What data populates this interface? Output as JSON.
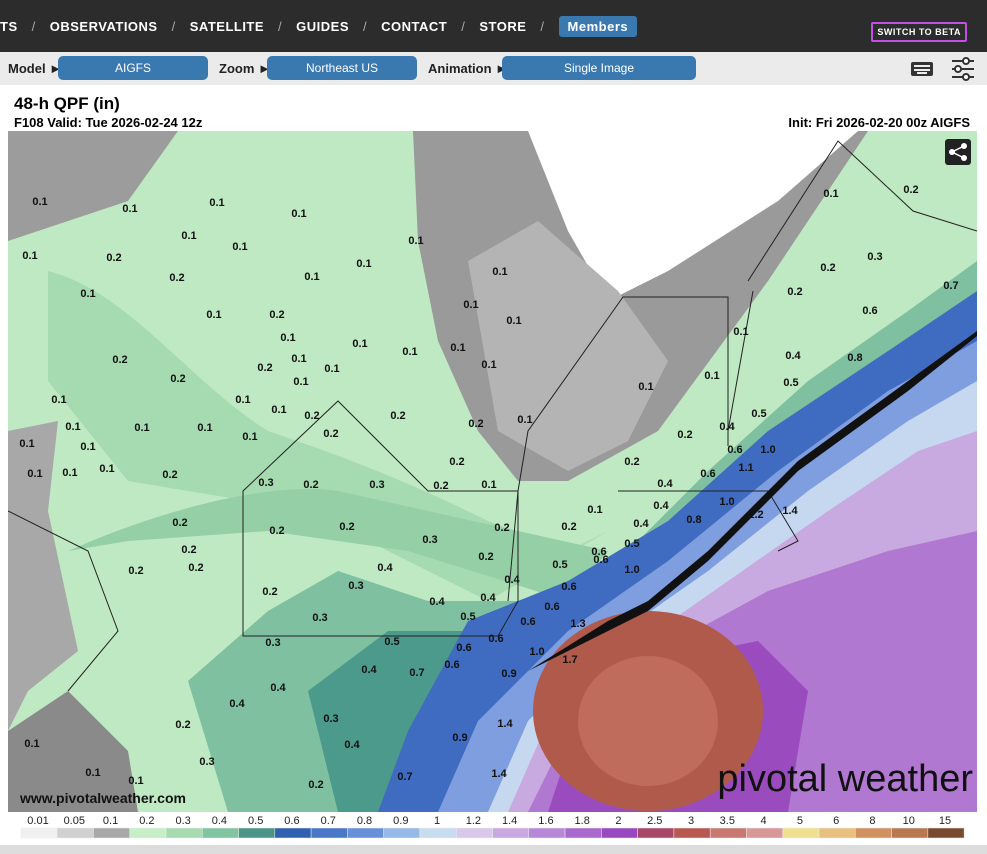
{
  "nav": {
    "items": [
      "TS",
      "OBSERVATIONS",
      "SATELLITE",
      "GUIDES",
      "CONTACT",
      "STORE"
    ],
    "separator": "/",
    "members": "Members",
    "beta": "SWITCH TO BETA"
  },
  "toolbar": {
    "model_label": "Model ►",
    "model": "AIGFS",
    "zoom_label": "Zoom ►",
    "zoom": "Northeast US",
    "animation_label": "Animation ►",
    "animation": "Single Image"
  },
  "header": {
    "title": "48-h QPF (in)",
    "valid": "F108 Valid: Tue 2026-02-24 12z",
    "init": "Init: Fri 2026-02-20 00z AIGFS"
  },
  "map": {
    "url": "www.pivotalweather.com",
    "brand": "pivotal weather",
    "labels": [
      "0.1",
      "0.1",
      "0.1",
      "0.1",
      "0.1",
      "0.1",
      "0.2",
      "0.1",
      "0.2",
      "0.1",
      "0.1",
      "0.1",
      "0.1",
      "0.1",
      "0.1",
      "0.2",
      "0.1",
      "0.1",
      "0.1",
      "0.2",
      "0.2",
      "0.1",
      "0.1",
      "0.1",
      "0.1",
      "0.1",
      "0.1",
      "0.1",
      "0.2",
      "0.1",
      "0.1",
      "0.1",
      "0.2",
      "0.1",
      "0.1",
      "0.1",
      "0.1",
      "0.2",
      "0.2",
      "0.2",
      "0.1",
      "0.1",
      "0.1",
      "0.1",
      "0.1",
      "0.1",
      "0.2",
      "0.3",
      "0.2",
      "0.3",
      "0.2",
      "0.1",
      "0.2",
      "0.2",
      "0.2",
      "0.2",
      "0.3",
      "0.2",
      "0.2",
      "0.1",
      "0.2",
      "0.2",
      "0.2",
      "0.2",
      "0.3",
      "0.4",
      "0.2",
      "0.4",
      "0.4",
      "0.5",
      "0.4",
      "0.5",
      "0.6",
      "0.6",
      "0.3",
      "0.3",
      "0.5",
      "0.6",
      "0.6",
      "0.6",
      "0.6",
      "1.0",
      "1.3",
      "1.7",
      "0.4",
      "0.4",
      "0.4",
      "0.7",
      "0.6",
      "0.9",
      "0.3",
      "0.2",
      "0.4",
      "0.3",
      "0.7",
      "0.9",
      "1.4",
      "1.4",
      "0.2",
      "0.1",
      "0.1",
      "0.1",
      "0.1",
      "0.2",
      "0.3",
      "0.2",
      "0.2",
      "0.7",
      "0.6",
      "0.1",
      "0.4",
      "0.8",
      "0.1",
      "0.1",
      "0.5",
      "0.5",
      "0.4",
      "0.2",
      "0.6",
      "1.0",
      "0.6",
      "0.4",
      "0.2",
      "0.4",
      "0.4",
      "1.1",
      "1.0",
      "0.8",
      "1.2",
      "1.4",
      "0.5",
      "0.6",
      "1.0"
    ]
  },
  "colorbar": {
    "labels": [
      "0.01",
      "0.05",
      "0.1",
      "0.2",
      "0.3",
      "0.4",
      "0.5",
      "0.6",
      "0.7",
      "0.8",
      "0.9",
      "1",
      "1.2",
      "1.4",
      "1.6",
      "1.8",
      "2",
      "2.5",
      "3",
      "3.5",
      "4",
      "5",
      "6",
      "8",
      "10",
      "15"
    ],
    "colors": [
      "#f0f0f0",
      "#d0d0d0",
      "#a8a8a8",
      "#c8eec8",
      "#a8dcb0",
      "#80c4a0",
      "#4a9488",
      "#3060b0",
      "#4a78c8",
      "#6890d8",
      "#98b8e8",
      "#c8dcf0",
      "#d8c8ec",
      "#c8a8e0",
      "#b888d8",
      "#a868cc",
      "#9848c0",
      "#a84868",
      "#b85850",
      "#c87870",
      "#d89898",
      "#f0e090",
      "#e8c080",
      "#d09060",
      "#b87850",
      "#7a4a30"
    ]
  }
}
